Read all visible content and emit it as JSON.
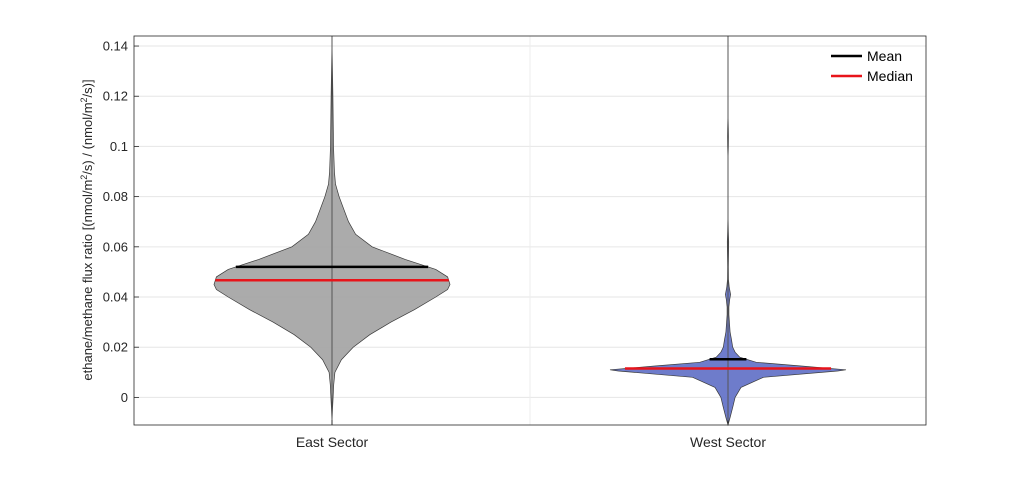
{
  "chart_data": {
    "type": "violin",
    "title": "",
    "xlabel": "",
    "ylabel": {
      "parts": [
        {
          "t": "ethane/methane flux ratio [(nmol/m"
        },
        {
          "t": "2",
          "sup": true
        },
        {
          "t": "/s) / (nmol/m"
        },
        {
          "t": "2",
          "sup": true
        },
        {
          "t": "/s)]"
        }
      ]
    },
    "ylim": [
      -0.011,
      0.144
    ],
    "yticks": [
      0,
      0.02,
      0.04,
      0.06,
      0.08,
      0.1,
      0.12,
      0.14
    ],
    "ytick_labels": [
      "0",
      "0.02",
      "0.04",
      "0.06",
      "0.08",
      "0.1",
      "0.12",
      "0.14"
    ],
    "grid": true,
    "legend": {
      "position": "top-right",
      "entries": [
        {
          "label": "Mean",
          "color": "#000000"
        },
        {
          "label": "Median",
          "color": "#e8141a"
        }
      ]
    },
    "categories": [
      "East Sector",
      "West Sector"
    ],
    "series": [
      {
        "category": "East Sector",
        "color": "#a6a6a6",
        "mean": 0.052,
        "median": 0.0467,
        "min": -0.011,
        "max": 0.144,
        "profile": [
          [
            -0.011,
            0.0
          ],
          [
            -0.008,
            0.002
          ],
          [
            -0.004,
            0.005
          ],
          [
            0.0,
            0.009
          ],
          [
            0.005,
            0.014
          ],
          [
            0.01,
            0.025
          ],
          [
            0.015,
            0.08
          ],
          [
            0.02,
            0.18
          ],
          [
            0.025,
            0.32
          ],
          [
            0.03,
            0.5
          ],
          [
            0.035,
            0.7
          ],
          [
            0.04,
            0.88
          ],
          [
            0.043,
            0.98
          ],
          [
            0.045,
            1.0
          ],
          [
            0.048,
            0.98
          ],
          [
            0.051,
            0.88
          ],
          [
            0.055,
            0.62
          ],
          [
            0.06,
            0.34
          ],
          [
            0.065,
            0.2
          ],
          [
            0.07,
            0.14
          ],
          [
            0.075,
            0.1
          ],
          [
            0.08,
            0.06
          ],
          [
            0.085,
            0.03
          ],
          [
            0.09,
            0.02
          ],
          [
            0.1,
            0.013
          ],
          [
            0.11,
            0.01
          ],
          [
            0.12,
            0.008
          ],
          [
            0.13,
            0.004
          ],
          [
            0.137,
            0.002
          ],
          [
            0.144,
            0.0
          ]
        ]
      },
      {
        "category": "West Sector",
        "color": "#6675c8",
        "mean": 0.0152,
        "median": 0.0115,
        "min": -0.011,
        "max": 0.144,
        "profile": [
          [
            -0.011,
            0.0
          ],
          [
            -0.008,
            0.018
          ],
          [
            -0.004,
            0.04
          ],
          [
            0.0,
            0.06
          ],
          [
            0.004,
            0.11
          ],
          [
            0.008,
            0.3
          ],
          [
            0.0105,
            0.93
          ],
          [
            0.011,
            1.0
          ],
          [
            0.0125,
            0.62
          ],
          [
            0.014,
            0.24
          ],
          [
            0.016,
            0.1
          ],
          [
            0.018,
            0.06
          ],
          [
            0.02,
            0.04
          ],
          [
            0.023,
            0.03
          ],
          [
            0.026,
            0.018
          ],
          [
            0.03,
            0.012
          ],
          [
            0.033,
            0.008
          ],
          [
            0.036,
            0.008
          ],
          [
            0.039,
            0.014
          ],
          [
            0.041,
            0.022
          ],
          [
            0.044,
            0.01
          ],
          [
            0.047,
            0.004
          ],
          [
            0.052,
            0.003
          ],
          [
            0.058,
            0.005
          ],
          [
            0.062,
            0.006
          ],
          [
            0.066,
            0.003
          ],
          [
            0.072,
            0.001
          ],
          [
            0.085,
            0.0
          ],
          [
            0.094,
            0.0
          ],
          [
            0.1,
            0.003
          ],
          [
            0.104,
            0.004
          ],
          [
            0.107,
            0.003
          ],
          [
            0.112,
            0.001
          ],
          [
            0.12,
            0.0
          ]
        ]
      }
    ]
  }
}
